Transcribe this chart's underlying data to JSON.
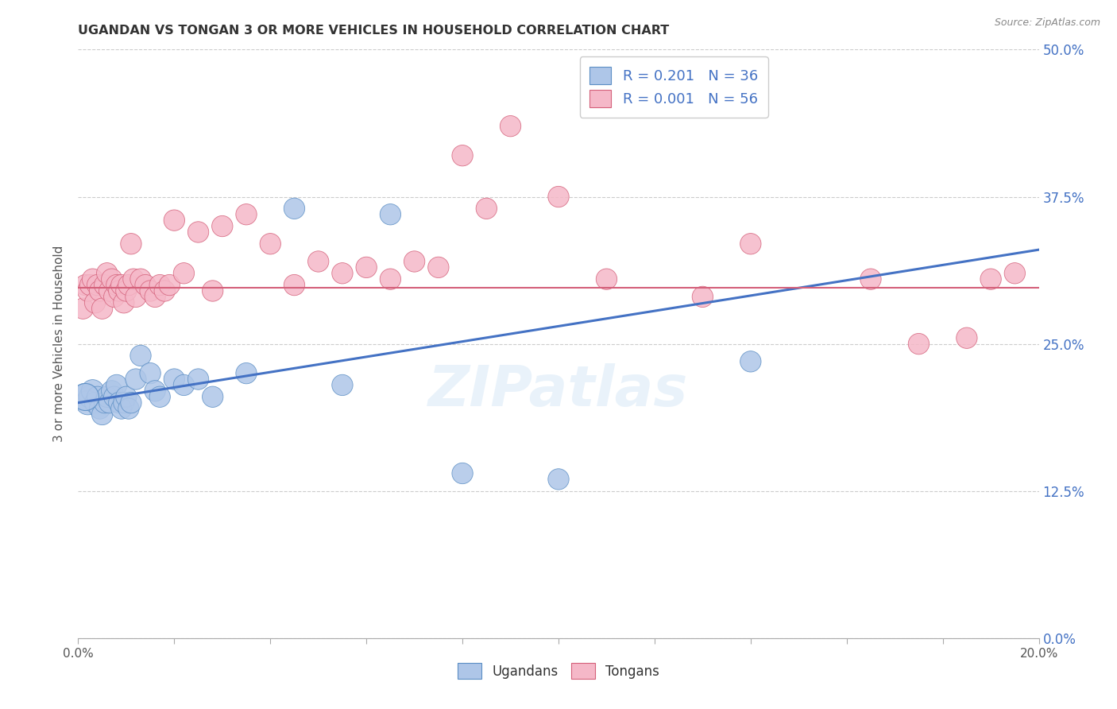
{
  "title": "UGANDAN VS TONGAN 3 OR MORE VEHICLES IN HOUSEHOLD CORRELATION CHART",
  "source": "Source: ZipAtlas.com",
  "ylabel": "3 or more Vehicles in Household",
  "watermark": "ZIPatlas",
  "legend_blue_label": "Ugandans",
  "legend_pink_label": "Tongans",
  "blue_color": "#aec6e8",
  "pink_color": "#f5b8c8",
  "blue_edge_color": "#5b8ec4",
  "pink_edge_color": "#d4607a",
  "blue_line_color": "#4472c4",
  "pink_line_color": "#d4607a",
  "ugandan_x": [
    0.15,
    0.2,
    0.25,
    0.3,
    0.35,
    0.4,
    0.45,
    0.5,
    0.55,
    0.6,
    0.65,
    0.7,
    0.75,
    0.8,
    0.85,
    0.9,
    0.95,
    1.0,
    1.05,
    1.1,
    1.2,
    1.3,
    1.5,
    1.6,
    1.7,
    2.0,
    2.2,
    2.5,
    2.8,
    3.5,
    4.5,
    5.5,
    6.5,
    8.0,
    10.0,
    14.0
  ],
  "ugandan_y": [
    20.5,
    20.0,
    20.5,
    21.0,
    20.0,
    20.5,
    19.5,
    19.0,
    20.0,
    20.5,
    20.0,
    21.0,
    20.5,
    21.5,
    20.0,
    19.5,
    20.0,
    20.5,
    19.5,
    20.0,
    22.0,
    24.0,
    22.5,
    21.0,
    20.5,
    22.0,
    21.5,
    22.0,
    20.5,
    22.5,
    36.5,
    21.5,
    36.0,
    14.0,
    13.5,
    23.5
  ],
  "ugandan_sizes": [
    50,
    40,
    35,
    35,
    30,
    30,
    30,
    30,
    30,
    30,
    30,
    30,
    30,
    30,
    30,
    30,
    30,
    30,
    30,
    30,
    30,
    30,
    30,
    30,
    30,
    30,
    30,
    30,
    30,
    30,
    30,
    30,
    30,
    30,
    30,
    30
  ],
  "ugandan_large_x": 0.15,
  "ugandan_large_y": 20.5,
  "ugandan_large_size": 600,
  "tongan_x": [
    0.1,
    0.15,
    0.2,
    0.25,
    0.3,
    0.35,
    0.4,
    0.45,
    0.5,
    0.55,
    0.6,
    0.65,
    0.7,
    0.75,
    0.8,
    0.85,
    0.9,
    0.95,
    1.0,
    1.05,
    1.1,
    1.15,
    1.2,
    1.3,
    1.4,
    1.5,
    1.6,
    1.7,
    1.8,
    1.9,
    2.0,
    2.2,
    2.5,
    2.8,
    3.0,
    3.5,
    4.0,
    4.5,
    5.0,
    5.5,
    6.0,
    6.5,
    7.0,
    7.5,
    8.0,
    8.5,
    9.0,
    10.0,
    11.0,
    13.0,
    14.0,
    16.5,
    17.5,
    18.5,
    19.0,
    19.5
  ],
  "tongan_y": [
    28.0,
    30.0,
    29.5,
    30.0,
    30.5,
    28.5,
    30.0,
    29.5,
    28.0,
    30.0,
    31.0,
    29.5,
    30.5,
    29.0,
    30.0,
    29.5,
    30.0,
    28.5,
    29.5,
    30.0,
    33.5,
    30.5,
    29.0,
    30.5,
    30.0,
    29.5,
    29.0,
    30.0,
    29.5,
    30.0,
    35.5,
    31.0,
    34.5,
    29.5,
    35.0,
    36.0,
    33.5,
    30.0,
    32.0,
    31.0,
    31.5,
    30.5,
    32.0,
    31.5,
    41.0,
    36.5,
    43.5,
    37.5,
    30.5,
    29.0,
    33.5,
    30.5,
    25.0,
    25.5,
    30.5,
    31.0
  ],
  "tongan_sizes": [
    30,
    30,
    30,
    30,
    30,
    30,
    30,
    30,
    30,
    30,
    30,
    30,
    30,
    30,
    30,
    30,
    30,
    30,
    30,
    30,
    30,
    30,
    30,
    30,
    30,
    30,
    30,
    30,
    30,
    30,
    30,
    30,
    30,
    30,
    30,
    30,
    30,
    30,
    30,
    30,
    30,
    30,
    30,
    30,
    30,
    30,
    30,
    30,
    30,
    30,
    30,
    30,
    30,
    30,
    30,
    30
  ],
  "xlim": [
    0.0,
    20.0
  ],
  "ylim": [
    0.0,
    50.0
  ],
  "blue_reg_x0": 0.0,
  "blue_reg_y0": 20.0,
  "blue_reg_x1": 20.0,
  "blue_reg_y1": 33.0,
  "pink_reg_y": 29.8,
  "ytick_vals": [
    0.0,
    12.5,
    25.0,
    37.5,
    50.0
  ],
  "xtick_positions": [
    0,
    2,
    4,
    6,
    8,
    10,
    12,
    14,
    16,
    18,
    20
  ],
  "background_color": "#ffffff",
  "grid_color": "#cccccc"
}
